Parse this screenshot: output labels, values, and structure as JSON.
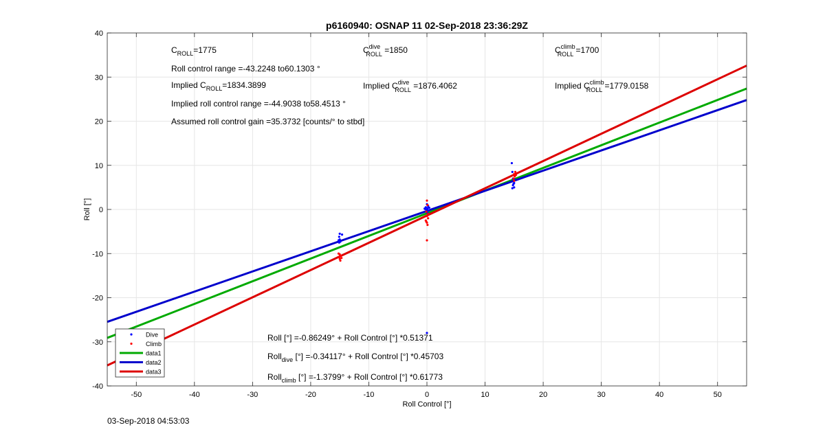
{
  "timestamp": "03-Sep-2018 04:53:03",
  "chart_data": {
    "type": "scatter",
    "title": "p6160940: OSNAP 11 02-Sep-2018 23:36:29Z",
    "xlabel": "Roll Control [°]",
    "ylabel": "Roll [°]",
    "xlim": [
      -55,
      55
    ],
    "ylim": [
      -40,
      40
    ],
    "xticks": [
      -50,
      -40,
      -30,
      -20,
      -10,
      0,
      10,
      20,
      30,
      40,
      50
    ],
    "yticks": [
      -40,
      -30,
      -20,
      -10,
      0,
      10,
      20,
      30,
      40
    ],
    "grid": true,
    "legend_position": "bottom-left",
    "colors": {
      "dive": "#0000ff",
      "climb": "#ff0000",
      "data1": "#00aa00",
      "data2": "#0000cc",
      "data3": "#dd0000"
    },
    "series": [
      {
        "name": "Dive",
        "kind": "points",
        "color": "#0000ff",
        "points": [
          [
            -15,
            -5.5
          ],
          [
            -14.6,
            -5.7
          ],
          [
            -15.1,
            -6.2
          ],
          [
            -15.2,
            -7.0
          ],
          [
            -15.1,
            -7.5
          ],
          [
            -14.9,
            -7.3
          ],
          [
            -15.0,
            -6.8
          ],
          [
            0,
            0
          ],
          [
            0.1,
            0.3
          ],
          [
            -0.2,
            0.5
          ],
          [
            0.3,
            -0.2
          ],
          [
            -0.3,
            0.1
          ],
          [
            0.2,
            0.8
          ],
          [
            0,
            1.2
          ],
          [
            -0.1,
            -0.4
          ],
          [
            0.1,
            -0.8
          ],
          [
            -0.4,
            0.2
          ],
          [
            0.4,
            0.4
          ],
          [
            0,
            -28.0
          ],
          [
            14.6,
            10.5
          ],
          [
            14.7,
            8.5
          ],
          [
            14.8,
            7.0
          ],
          [
            14.9,
            6.5
          ],
          [
            15.0,
            6.0
          ],
          [
            14.8,
            5.5
          ],
          [
            15.0,
            5.0
          ],
          [
            14.7,
            4.8
          ],
          [
            15.1,
            6.8
          ],
          [
            14.9,
            5.8
          ]
        ]
      },
      {
        "name": "Climb",
        "kind": "points",
        "color": "#ff0000",
        "points": [
          [
            -15.0,
            -10.2
          ],
          [
            -14.8,
            -10.5
          ],
          [
            -15.1,
            -10.8
          ],
          [
            -15.0,
            -11.2
          ],
          [
            -14.9,
            -11.6
          ],
          [
            -15.2,
            -10.0
          ],
          [
            -14.7,
            -11.0
          ],
          [
            0,
            2.0
          ],
          [
            0.1,
            1.0
          ],
          [
            -0.1,
            -0.5
          ],
          [
            0,
            -1.5
          ],
          [
            0.2,
            -2.0
          ],
          [
            -0.2,
            -2.5
          ],
          [
            0,
            -3.0
          ],
          [
            0.1,
            -3.5
          ],
          [
            -0.1,
            -2.8
          ],
          [
            0,
            -7.0
          ],
          [
            0.2,
            -1.0
          ],
          [
            15.2,
            8.5
          ],
          [
            15.0,
            8.0
          ],
          [
            15.1,
            7.5
          ],
          [
            14.9,
            7.0
          ],
          [
            15.0,
            6.5
          ],
          [
            15.3,
            7.8
          ]
        ]
      },
      {
        "name": "data1",
        "kind": "line",
        "color": "#00aa00",
        "intercept": -0.86249,
        "slope": 0.51371
      },
      {
        "name": "data2",
        "kind": "line",
        "color": "#0000cc",
        "intercept": -0.34117,
        "slope": 0.45703
      },
      {
        "name": "data3",
        "kind": "line",
        "color": "#dd0000",
        "intercept": -1.3799,
        "slope": 0.61773
      }
    ],
    "annotations": {
      "croll": {
        "base": "C",
        "sub": "ROLL",
        "sup": "",
        "tail": "=1775"
      },
      "croll_dive": {
        "base": "C",
        "sub": "ROLL",
        "sup": "dive",
        "tail": " =1850"
      },
      "croll_climb": {
        "base": "C",
        "sub": "ROLL",
        "sup": "climb",
        "tail": " =1700"
      },
      "range": "Roll control range =-43.2248 to60.1303 °",
      "implied": {
        "base": "Implied C",
        "sub": "ROLL",
        "sup": "",
        "tail": "=1834.3899"
      },
      "implied_dive": {
        "base": "Implied C",
        "sub": "ROLL",
        "sup": "dive",
        "tail": " =1876.4062"
      },
      "implied_climb": {
        "base": "Implied C",
        "sub": "ROLL",
        "sup": "climb",
        "tail": " =1779.0158"
      },
      "implied_range": "Implied roll control range =-44.9038 to58.4513 °",
      "gain": "Assumed roll control gain =35.3732 [counts/° to stbd]",
      "fit_all": {
        "base": "Roll [°] =-0.86249° + Roll Control [°] *0.51371",
        "sub": ""
      },
      "fit_dive": {
        "base": "Roll",
        "sub": "dive",
        "tail": " [°] =-0.34117° + Roll Control [°] *0.45703"
      },
      "fit_climb": {
        "base": "Roll",
        "sub": "climb",
        "tail": " [°] =-1.3799° + Roll Control [°] *0.61773"
      }
    }
  }
}
